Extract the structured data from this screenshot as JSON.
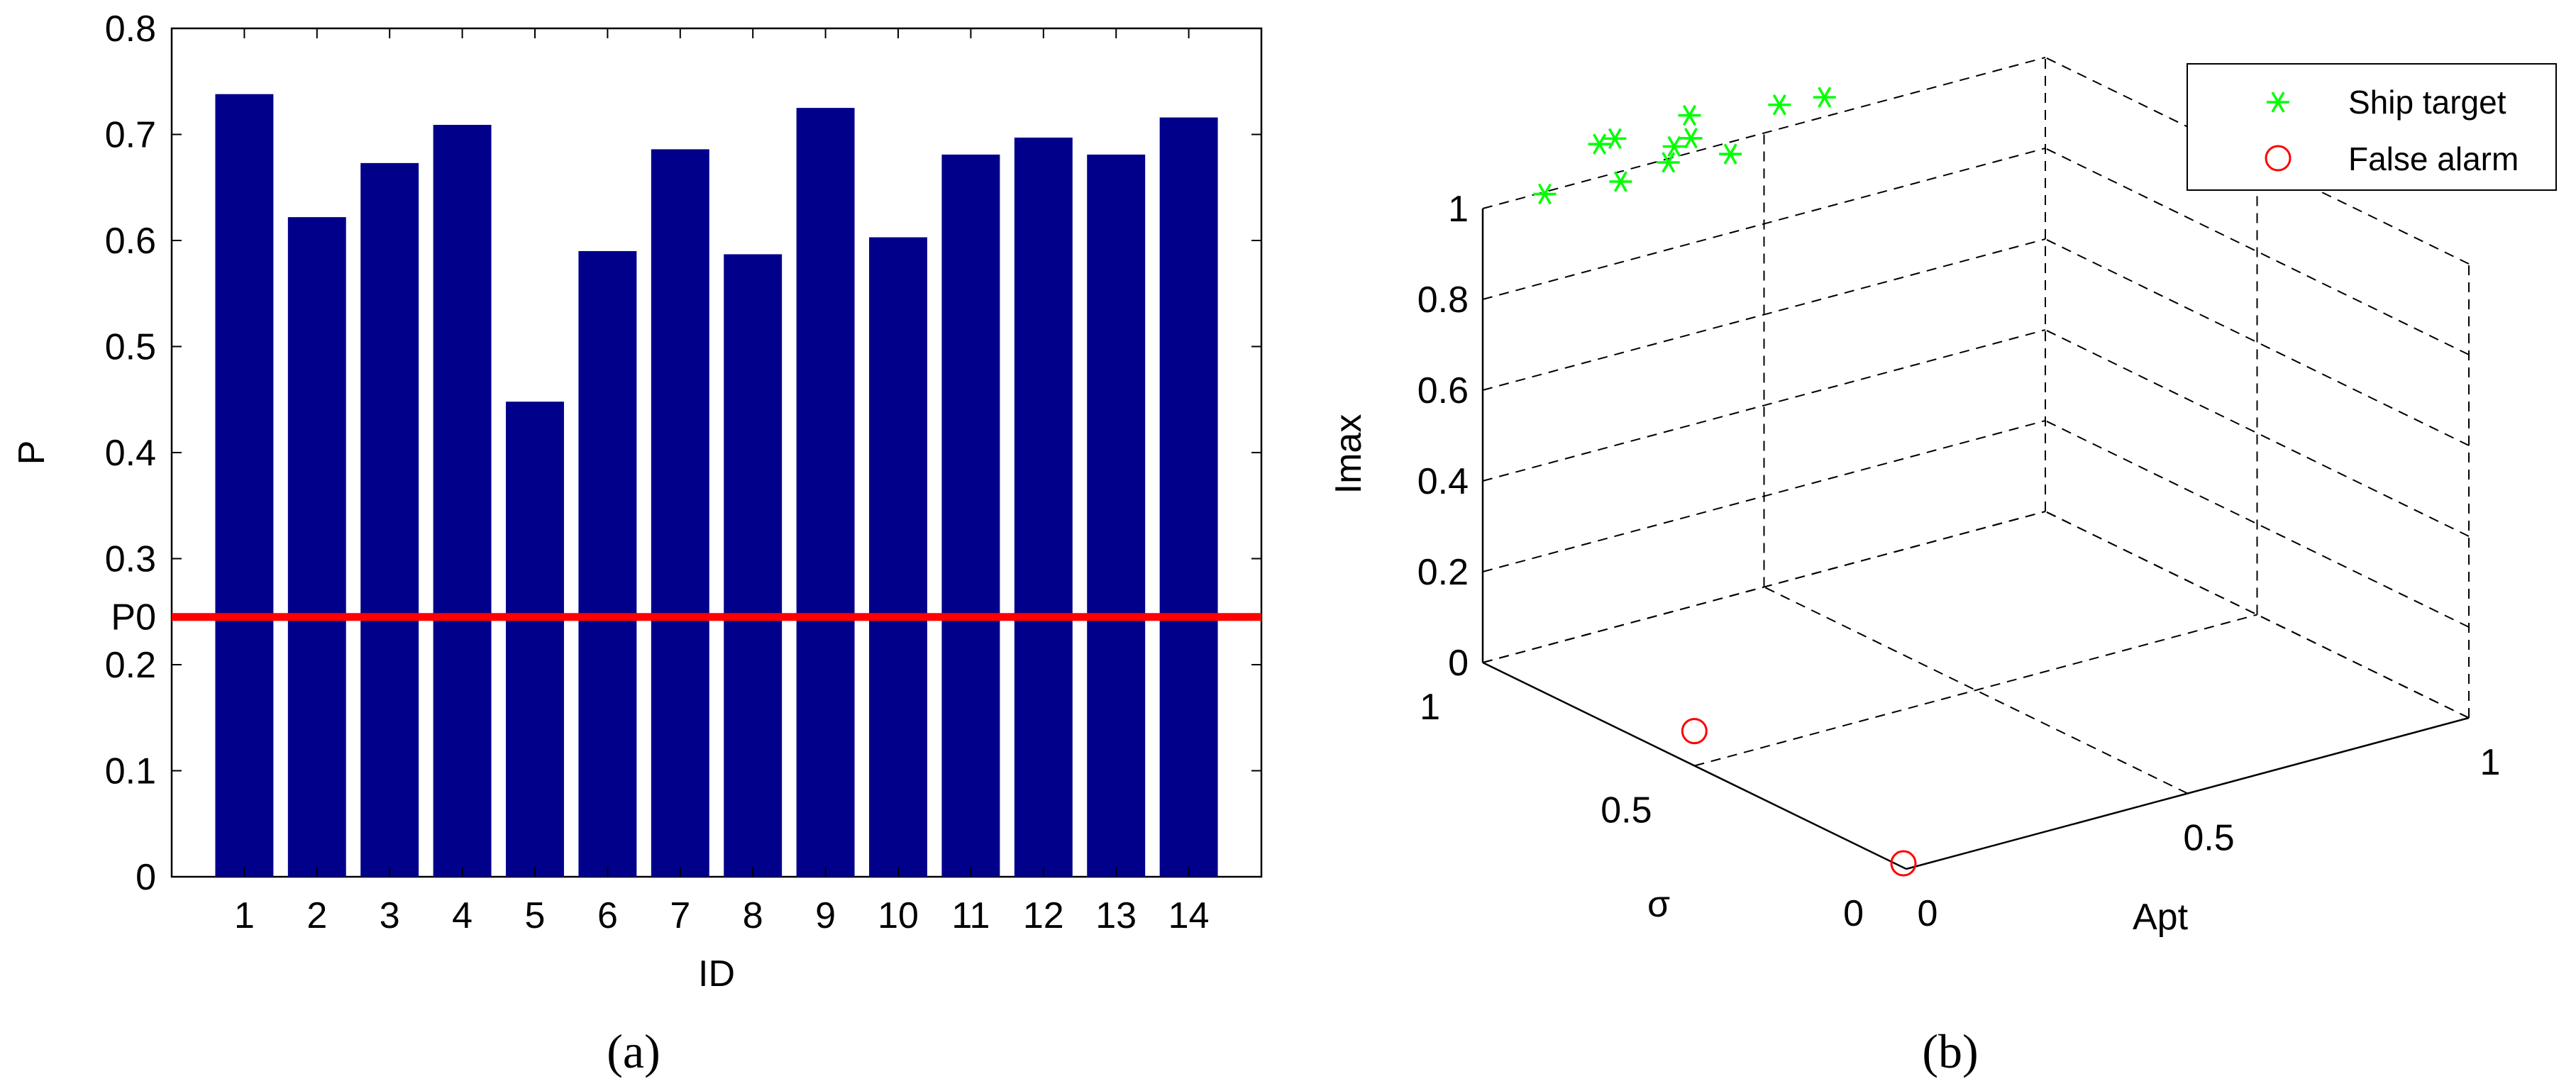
{
  "chart_data": [
    {
      "type": "bar",
      "caption": "(a)",
      "xlabel": "ID",
      "ylabel": "P",
      "categories": [
        "1",
        "2",
        "3",
        "4",
        "5",
        "6",
        "7",
        "8",
        "9",
        "10",
        "11",
        "12",
        "13",
        "14"
      ],
      "values": [
        0.738,
        0.622,
        0.673,
        0.709,
        0.448,
        0.59,
        0.686,
        0.587,
        0.725,
        0.603,
        0.681,
        0.697,
        0.681,
        0.716
      ],
      "ylim": [
        0,
        0.8
      ],
      "yticks": [
        "0",
        "0.1",
        "0.2",
        "0.3",
        "0.4",
        "0.5",
        "0.6",
        "0.7",
        "0.8"
      ],
      "bar_color": "#00008b",
      "threshold": {
        "label": "P0",
        "value": 0.245,
        "color": "#ff0000"
      },
      "grid": false
    },
    {
      "type": "scatter",
      "caption": "(b)",
      "xlabel": "Apt",
      "ylabel": "σ",
      "zlabel": "Imax",
      "x_ticks": [
        "0",
        "0.5",
        "1"
      ],
      "y_ticks": [
        "0",
        "0.5",
        "1"
      ],
      "z_ticks": [
        "0",
        "0.2",
        "0.4",
        "0.6",
        "0.8",
        "1"
      ],
      "xlim": [
        0,
        1
      ],
      "ylim": [
        0,
        1
      ],
      "zlim": [
        0,
        1
      ],
      "legend_position": "top-right",
      "series": [
        {
          "name": "Ship target",
          "marker": "asterisk",
          "color": "#00ff00",
          "points": [
            {
              "x": 0.02,
              "y": 0.88,
              "z": 1.08
            },
            {
              "x": 0.2,
              "y": 0.99,
              "z": 1.08
            },
            {
              "x": 0.22,
              "y": 0.98,
              "z": 1.09
            },
            {
              "x": 0.2,
              "y": 0.94,
              "z": 1.02
            },
            {
              "x": 0.3,
              "y": 0.96,
              "z": 1.02
            },
            {
              "x": 0.28,
              "y": 0.92,
              "z": 1.08
            },
            {
              "x": 0.34,
              "y": 0.96,
              "z": 1.06
            },
            {
              "x": 0.36,
              "y": 0.99,
              "z": 1.09
            },
            {
              "x": 0.38,
              "y": 0.92,
              "z": 1.03
            },
            {
              "x": 0.52,
              "y": 0.99,
              "z": 1.06
            },
            {
              "x": 0.6,
              "y": 0.99,
              "z": 1.05
            }
          ]
        },
        {
          "name": "False alarm",
          "marker": "circle",
          "color": "#ff0000",
          "points": [
            {
              "x": 0.01,
              "y": 0.02,
              "z": 0.0
            },
            {
              "x": 0.06,
              "y": 0.58,
              "z": 0.02
            }
          ]
        }
      ]
    }
  ]
}
